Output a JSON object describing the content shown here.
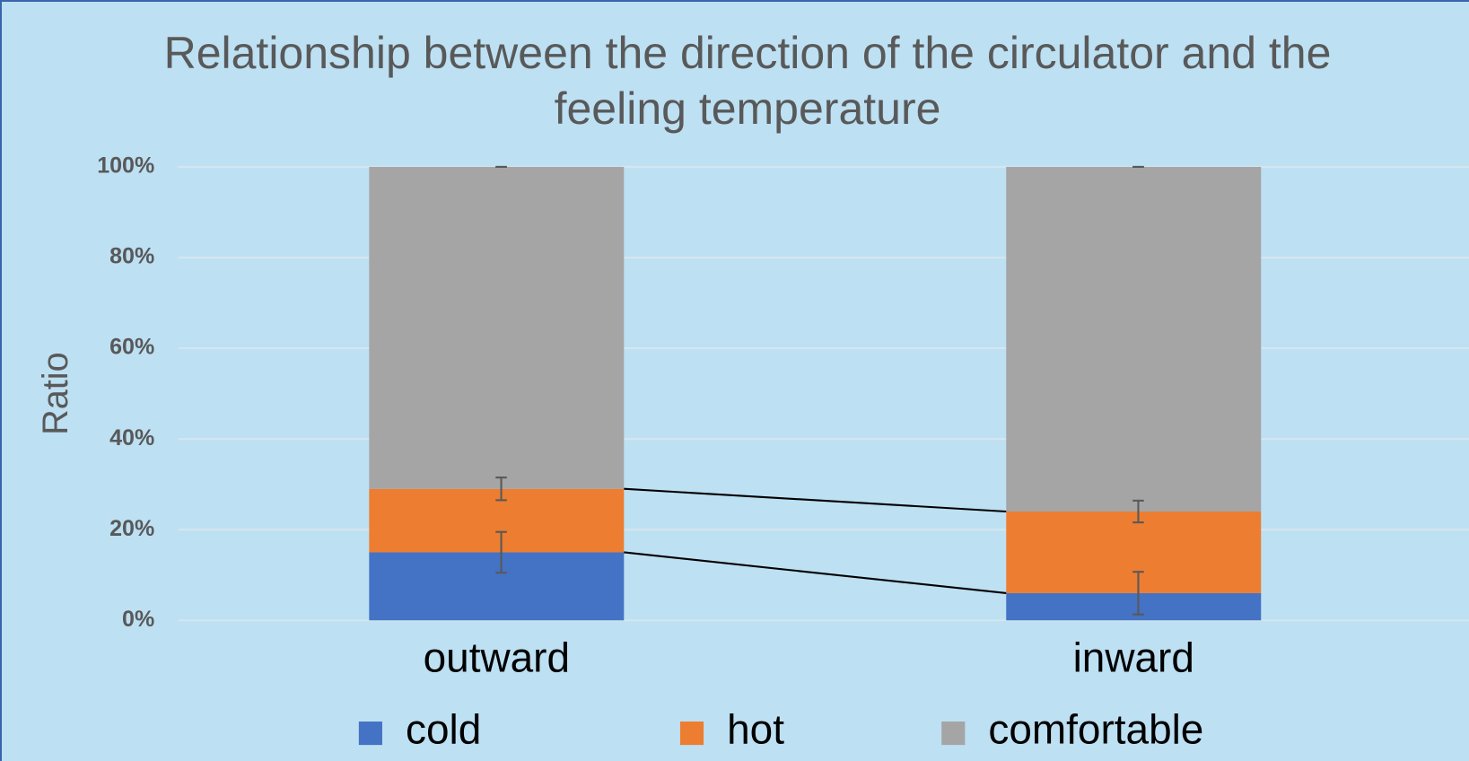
{
  "chart_data": {
    "type": "stacked_bar",
    "title": "Relationship between the direction of the circulator and the feeling temperature",
    "y_label": "Ratio",
    "categories": [
      "outward",
      "inward"
    ],
    "series": [
      {
        "name": "cold",
        "color": "#4472c4",
        "values": [
          15,
          6
        ],
        "errors": [
          4.5,
          4.7
        ]
      },
      {
        "name": "hot",
        "color": "#ed7d31",
        "values": [
          14,
          18
        ],
        "errors": [
          2.5,
          2.4
        ]
      },
      {
        "name": "comfortable",
        "color": "#a5a5a5",
        "values": [
          71,
          76
        ],
        "errors": [
          0,
          0
        ]
      }
    ],
    "ylim": [
      0,
      100
    ],
    "yticks": [
      {
        "value": 0,
        "label": "0%"
      },
      {
        "value": 20,
        "label": "20%"
      },
      {
        "value": 40,
        "label": "40%"
      },
      {
        "value": 60,
        "label": "60%"
      },
      {
        "value": 80,
        "label": "80%"
      },
      {
        "value": 100,
        "label": "100%"
      }
    ],
    "grid": true,
    "series_lines": true,
    "legend": "bottom"
  }
}
